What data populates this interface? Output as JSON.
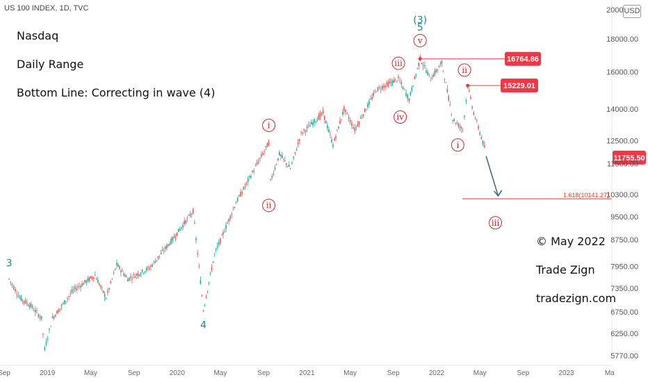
{
  "header": {
    "symbol": "US 100 INDEX, 1D, TVC"
  },
  "annotations": {
    "line1": "Nasdaq",
    "line2": "Daily Range",
    "line3": "Bottom Line: Correcting in wave (4)",
    "copyright": "© May 2022",
    "brand": "Trade Zign",
    "site": "tradezign.com"
  },
  "chart_data": {
    "type": "line",
    "style": "candlestick",
    "currency": "USD",
    "y_ticks": [
      20000,
      18000,
      16000,
      14000,
      12500,
      11500,
      10300,
      9500,
      8750,
      7950,
      7350,
      6750,
      6250,
      5770
    ],
    "y_tick_labels": [
      "20000.00",
      "18000.00",
      "16000.00",
      "14000.00",
      "12500.00",
      "11500.00",
      "10300.00",
      "9500.00",
      "8750.00",
      "7950.00",
      "7350.00",
      "6750.00",
      "6250.00",
      "5770.00"
    ],
    "x_ticks": [
      "Sep",
      "2019",
      "May",
      "Sep",
      "2020",
      "May",
      "Sep",
      "2021",
      "May",
      "Sep",
      "2022",
      "May",
      "Sep",
      "2023",
      "Ma"
    ],
    "price_path": [
      {
        "x": "2018-09",
        "y": 7600
      },
      {
        "x": "2018-10",
        "y": 7100
      },
      {
        "x": "2018-11",
        "y": 6900
      },
      {
        "x": "2018-12",
        "y": 6600
      },
      {
        "x": "2018-12-24",
        "y": 5900
      },
      {
        "x": "2019-01",
        "y": 6600
      },
      {
        "x": "2019-03",
        "y": 7300
      },
      {
        "x": "2019-05",
        "y": 7700
      },
      {
        "x": "2019-06",
        "y": 7100
      },
      {
        "x": "2019-07",
        "y": 8000
      },
      {
        "x": "2019-08",
        "y": 7600
      },
      {
        "x": "2019-10",
        "y": 7900
      },
      {
        "x": "2019-12",
        "y": 8700
      },
      {
        "x": "2020-02",
        "y": 9700
      },
      {
        "x": "2020-03",
        "y": 6800
      },
      {
        "x": "2020-04",
        "y": 8300
      },
      {
        "x": "2020-06",
        "y": 10000
      },
      {
        "x": "2020-09",
        "y": 12400
      },
      {
        "x": "2020-09-20",
        "y": 10800
      },
      {
        "x": "2020-10",
        "y": 11900
      },
      {
        "x": "2020-11",
        "y": 11300
      },
      {
        "x": "2020-12",
        "y": 12800
      },
      {
        "x": "2021-02",
        "y": 13800
      },
      {
        "x": "2021-03",
        "y": 12300
      },
      {
        "x": "2021-04",
        "y": 14000
      },
      {
        "x": "2021-05",
        "y": 13000
      },
      {
        "x": "2021-07",
        "y": 15000
      },
      {
        "x": "2021-09",
        "y": 15600
      },
      {
        "x": "2021-10",
        "y": 14500
      },
      {
        "x": "2021-11",
        "y": 16764.86
      },
      {
        "x": "2021-12",
        "y": 15600
      },
      {
        "x": "2022-01",
        "y": 16500
      },
      {
        "x": "2022-02",
        "y": 13500
      },
      {
        "x": "2022-03",
        "y": 13000
      },
      {
        "x": "2022-03-29",
        "y": 15229.01
      },
      {
        "x": "2022-04",
        "y": 13800
      },
      {
        "x": "2022-05",
        "y": 12200
      },
      {
        "x": "2022-05-12",
        "y": 11755.5
      }
    ],
    "projection": {
      "from": {
        "x": "2022-05-12",
        "y": 11755.5
      },
      "to": {
        "x": "2022-06",
        "y": 10141.27
      }
    },
    "price_badges": [
      {
        "label": "16764.86",
        "value": 16764.86
      },
      {
        "label": "15229.01",
        "value": 15229.01
      },
      {
        "label": "11755.50",
        "value": 11755.5
      }
    ],
    "fib_level": {
      "label": "1.618(10141.27)",
      "value": 10141.27
    },
    "wave_labels": [
      {
        "text": "3",
        "kind": "teal",
        "x": "2018-09",
        "y": 8050
      },
      {
        "text": "4",
        "kind": "teal",
        "x": "2020-03",
        "y": 6450
      },
      {
        "text": "(3)",
        "kind": "teal",
        "x": "2021-11",
        "y": 19300
      },
      {
        "text": "5",
        "kind": "teal",
        "x": "2021-11",
        "y": 18800
      },
      {
        "text": "v",
        "kind": "red",
        "x": "2021-11",
        "y": 17900
      },
      {
        "text": "i",
        "kind": "red",
        "x": "2020-09",
        "y": 13200
      },
      {
        "text": "ii",
        "kind": "red",
        "x": "2020-09",
        "y": 9900
      },
      {
        "text": "iii",
        "kind": "red",
        "x": "2021-09",
        "y": 16500
      },
      {
        "text": "iv",
        "kind": "red",
        "x": "2021-09-20",
        "y": 13600
      },
      {
        "text": "ii",
        "kind": "red",
        "x": "2022-03-20",
        "y": 16100
      },
      {
        "text": "i",
        "kind": "red",
        "x": "2022-03-01",
        "y": 12300
      },
      {
        "text": "iii",
        "kind": "red",
        "x": "2022-06",
        "y": 9300
      }
    ],
    "colors": {
      "up": "#26a69a",
      "down": "#ef5350",
      "badge": "#f23645",
      "fib": "#e53935",
      "arrow": "#37697a",
      "teal": "#1b8a8a"
    }
  }
}
